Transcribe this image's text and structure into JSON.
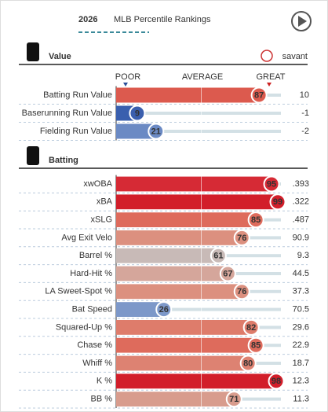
{
  "header": {
    "year": "2026",
    "title": "MLB Percentile Rankings",
    "brand": "savant"
  },
  "scale": {
    "poor": "POOR",
    "average": "AVERAGE",
    "great": "GREAT"
  },
  "sections": [
    {
      "title": "Value",
      "rows": [
        {
          "label": "Batting Run Value",
          "percentile": 87,
          "value": "10",
          "color": "#dc5a4e"
        },
        {
          "label": "Baserunning Run Value",
          "percentile": 9,
          "value": "-1",
          "color": "#3a5fae"
        },
        {
          "label": "Fielding Run Value",
          "percentile": 21,
          "value": "-2",
          "color": "#6b8ac4"
        }
      ]
    },
    {
      "title": "Batting",
      "rows": [
        {
          "label": "xwOBA",
          "percentile": 95,
          "value": ".393",
          "color": "#d62a35"
        },
        {
          "label": "xBA",
          "percentile": 99,
          "value": ".322",
          "color": "#d21e2a"
        },
        {
          "label": "xSLG",
          "percentile": 85,
          "value": ".487",
          "color": "#de6b5c"
        },
        {
          "label": "Avg Exit Velo",
          "percentile": 76,
          "value": "90.9",
          "color": "#dc907f"
        },
        {
          "label": "Barrel %",
          "percentile": 61,
          "value": "9.3",
          "color": "#c8bab7"
        },
        {
          "label": "Hard-Hit %",
          "percentile": 67,
          "value": "44.5",
          "color": "#d5a69b"
        },
        {
          "label": "LA Sweet-Spot %",
          "percentile": 76,
          "value": "37.3",
          "color": "#dc907f"
        },
        {
          "label": "Bat Speed",
          "percentile": 26,
          "value": "70.5",
          "color": "#7d98c9"
        },
        {
          "label": "Squared-Up %",
          "percentile": 82,
          "value": "29.6",
          "color": "#de7c6b"
        },
        {
          "label": "Chase %",
          "percentile": 85,
          "value": "22.9",
          "color": "#de6b5c"
        },
        {
          "label": "Whiff %",
          "percentile": 80,
          "value": "18.7",
          "color": "#dd8272"
        },
        {
          "label": "K %",
          "percentile": 98,
          "value": "12.3",
          "color": "#d21e2a"
        },
        {
          "label": "BB %",
          "percentile": 71,
          "value": "11.3",
          "color": "#d89c8d"
        }
      ]
    }
  ]
}
